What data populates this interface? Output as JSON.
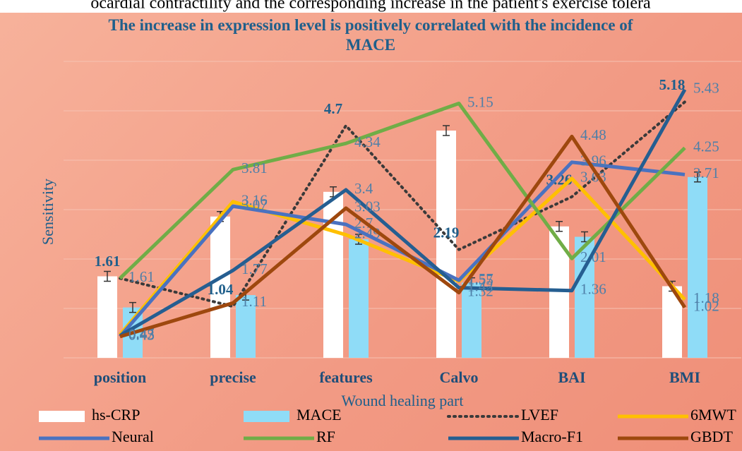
{
  "chart_data": {
    "type": "bar_line",
    "caption": "ocardial contractility and the corresponding increase in the patient's exercise tolera",
    "title": "The increase in expression level is positively correlated with the incidence of MACE",
    "x_label": "Wound healing part",
    "y_label": "Sensitivity",
    "categories": [
      "position",
      "precise",
      "features",
      "Calvo",
      "BAI",
      "BMI"
    ],
    "ylim": [
      0,
      6
    ],
    "yticks": [
      0,
      1,
      2,
      3,
      4,
      5,
      6
    ],
    "grid": true,
    "series": [
      {
        "name": "hs-CRP",
        "kind": "bar",
        "color": "#ffffff",
        "values": [
          1.65,
          2.86,
          3.36,
          4.6,
          2.66,
          1.45
        ],
        "errors": [
          0.1,
          0.1,
          0.1,
          0.1,
          0.1,
          0.1
        ]
      },
      {
        "name": "MACE",
        "kind": "bar",
        "color": "#8fdcf7",
        "values": [
          1.02,
          1.27,
          2.4,
          1.52,
          2.45,
          3.66
        ],
        "errors": [
          0.1,
          0.1,
          0.1,
          0.1,
          0.1,
          0.1
        ]
      },
      {
        "name": "LVEF",
        "kind": "dotted",
        "color": "#3a3a3a",
        "values": [
          1.61,
          1.04,
          4.7,
          2.19,
          3.26,
          5.18
        ]
      },
      {
        "name": "6MWT",
        "kind": "line",
        "color": "#ffc000",
        "values": [
          0.47,
          3.16,
          2.49,
          1.55,
          3.63,
          1.18
        ]
      },
      {
        "name": "Neural",
        "kind": "line",
        "color": "#4a72c0",
        "values": [
          0.43,
          3.07,
          2.7,
          1.57,
          3.96,
          3.71
        ]
      },
      {
        "name": "RF",
        "kind": "line",
        "color": "#70ad47",
        "values": [
          1.61,
          3.81,
          4.34,
          5.15,
          2.01,
          4.25
        ]
      },
      {
        "name": "Macro-F1",
        "kind": "line",
        "color": "#255e91",
        "values": [
          0.45,
          1.77,
          3.4,
          1.42,
          1.36,
          5.43
        ]
      },
      {
        "name": "GBDT",
        "kind": "line",
        "color": "#9e480e",
        "values": [
          0.43,
          1.11,
          3.03,
          1.32,
          4.48,
          1.02
        ]
      }
    ]
  }
}
